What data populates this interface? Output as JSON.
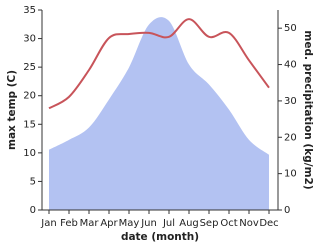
{
  "chart_data": {
    "type": "line-area",
    "x_label": "date (month)",
    "y_label": "max temp (C)",
    "y2_label": "med. precipitation (kg/m2)",
    "categories": [
      "Jan",
      "Feb",
      "Mar",
      "Apr",
      "May",
      "Jun",
      "Jul",
      "Aug",
      "Sep",
      "Oct",
      "Nov",
      "Dec"
    ],
    "series": [
      {
        "name": "max temp",
        "color": "#c8545a",
        "values": [
          17.8,
          19.8,
          24.5,
          30.1,
          30.8,
          31,
          30.3,
          33.4,
          30.3,
          31,
          26.2,
          21.4
        ]
      },
      {
        "name": "precipitation",
        "color": "#b3c2f2",
        "axis": "y2",
        "values": [
          16.6,
          19.3,
          22.7,
          30.4,
          39.2,
          51,
          52,
          40,
          34.5,
          27.6,
          19.3,
          15.2
        ]
      }
    ],
    "ylim": [
      0,
      35
    ],
    "yticks": [
      0,
      5,
      10,
      15,
      20,
      25,
      30,
      35
    ],
    "y2lim": [
      0,
      55
    ],
    "y2ticks": [
      0,
      10,
      20,
      30,
      40,
      50
    ]
  }
}
